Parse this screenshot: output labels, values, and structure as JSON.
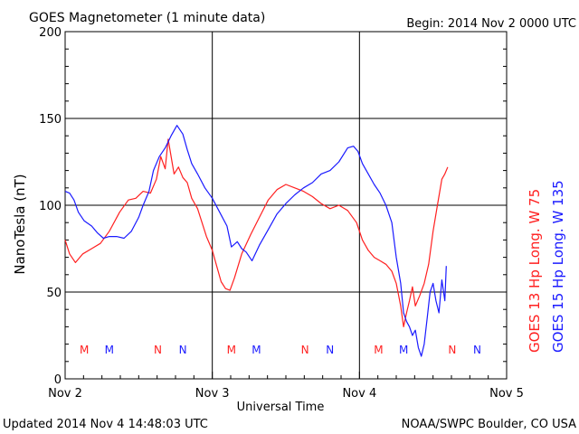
{
  "header": {
    "title": "GOES Magnetometer (1 minute data)",
    "begin": "Begin:  2014 Nov 2 0000 UTC"
  },
  "footer": {
    "updated": "Updated 2014 Nov  4 14:48:03 UTC",
    "credit": "NOAA/SWPC Boulder, CO USA"
  },
  "colors": {
    "goes13": "#ff2020",
    "goes15": "#1a1aff",
    "grid": "#000000"
  },
  "chart_data": {
    "type": "line",
    "title": "GOES Magnetometer (1 minute data)",
    "xlabel": "Universal Time",
    "ylabel": "NanoTesla (nT)",
    "xlim_days": [
      0,
      3
    ],
    "ylim": [
      0,
      200
    ],
    "yticks": [
      0,
      50,
      100,
      150,
      200
    ],
    "xtick_labels": [
      "Nov 2",
      "Nov 3",
      "Nov 4",
      "Nov 5"
    ],
    "grid": true,
    "legend": "right (rotated)",
    "series": [
      {
        "name": "GOES 13 Hp  Long. W 75",
        "color": "#ff2020",
        "x": [
          0,
          0.03,
          0.07,
          0.12,
          0.18,
          0.24,
          0.3,
          0.37,
          0.43,
          0.48,
          0.53,
          0.58,
          0.62,
          0.65,
          0.68,
          0.7,
          0.74,
          0.77,
          0.8,
          0.83,
          0.86,
          0.9,
          0.93,
          0.96,
          1.0,
          1.03,
          1.06,
          1.09,
          1.12,
          1.15,
          1.2,
          1.26,
          1.32,
          1.38,
          1.44,
          1.5,
          1.56,
          1.62,
          1.68,
          1.74,
          1.8,
          1.86,
          1.92,
          1.98,
          2.02,
          2.06,
          2.1,
          2.14,
          2.18,
          2.22,
          2.25,
          2.28,
          2.3,
          2.32,
          2.34,
          2.36,
          2.38,
          2.41,
          2.44,
          2.47,
          2.5,
          2.53,
          2.56,
          2.58,
          2.6
        ],
        "y": [
          80,
          72,
          67,
          72,
          75,
          78,
          85,
          96,
          103,
          104,
          108,
          107,
          115,
          128,
          121,
          138,
          118,
          122,
          116,
          113,
          104,
          98,
          90,
          82,
          74,
          65,
          56,
          52,
          51,
          58,
          72,
          83,
          93,
          103,
          109,
          112,
          110,
          108,
          105,
          101,
          98,
          100,
          97,
          90,
          80,
          74,
          70,
          68,
          66,
          62,
          55,
          42,
          30,
          38,
          45,
          53,
          42,
          48,
          55,
          66,
          85,
          100,
          115,
          118,
          122
        ]
      },
      {
        "name": "GOES 15 Hp  Long. W 135",
        "color": "#1a1aff",
        "x": [
          0,
          0.03,
          0.06,
          0.09,
          0.13,
          0.18,
          0.22,
          0.26,
          0.3,
          0.35,
          0.4,
          0.45,
          0.5,
          0.53,
          0.57,
          0.6,
          0.64,
          0.68,
          0.72,
          0.76,
          0.8,
          0.83,
          0.86,
          0.9,
          0.95,
          1.0,
          1.05,
          1.1,
          1.13,
          1.17,
          1.2,
          1.23,
          1.27,
          1.32,
          1.38,
          1.44,
          1.5,
          1.56,
          1.62,
          1.68,
          1.74,
          1.8,
          1.86,
          1.92,
          1.96,
          1.99,
          2.02,
          2.06,
          2.1,
          2.14,
          2.18,
          2.22,
          2.25,
          2.28,
          2.3,
          2.32,
          2.34,
          2.36,
          2.38,
          2.4,
          2.42,
          2.44,
          2.46,
          2.48,
          2.5,
          2.52,
          2.54,
          2.56,
          2.58,
          2.59
        ],
        "y": [
          108,
          107,
          103,
          96,
          91,
          88,
          84,
          81,
          82,
          82,
          81,
          85,
          93,
          100,
          108,
          120,
          128,
          133,
          140,
          146,
          141,
          132,
          124,
          118,
          110,
          104,
          96,
          88,
          76,
          79,
          75,
          73,
          68,
          77,
          86,
          95,
          101,
          106,
          110,
          113,
          118,
          120,
          125,
          133,
          134,
          131,
          124,
          118,
          112,
          107,
          100,
          90,
          70,
          55,
          38,
          33,
          30,
          25,
          28,
          18,
          13,
          20,
          35,
          50,
          55,
          45,
          38,
          57,
          45,
          65
        ]
      }
    ],
    "markers": [
      {
        "label": "M",
        "x": 0.13,
        "series": "GOES 13 Hp  Long. W 75"
      },
      {
        "label": "M",
        "x": 0.3,
        "series": "GOES 15 Hp  Long. W 135"
      },
      {
        "label": "N",
        "x": 0.63,
        "series": "GOES 13 Hp  Long. W 75"
      },
      {
        "label": "N",
        "x": 0.8,
        "series": "GOES 15 Hp  Long. W 135"
      },
      {
        "label": "M",
        "x": 1.13,
        "series": "GOES 13 Hp  Long. W 75"
      },
      {
        "label": "M",
        "x": 1.3,
        "series": "GOES 15 Hp  Long. W 135"
      },
      {
        "label": "N",
        "x": 1.63,
        "series": "GOES 13 Hp  Long. W 75"
      },
      {
        "label": "N",
        "x": 1.8,
        "series": "GOES 15 Hp  Long. W 135"
      },
      {
        "label": "M",
        "x": 2.13,
        "series": "GOES 13 Hp  Long. W 75"
      },
      {
        "label": "M",
        "x": 2.3,
        "series": "GOES 15 Hp  Long. W 135"
      },
      {
        "label": "N",
        "x": 2.63,
        "series": "GOES 13 Hp  Long. W 75"
      },
      {
        "label": "N",
        "x": 2.8,
        "series": "GOES 15 Hp  Long. W 135"
      }
    ]
  }
}
